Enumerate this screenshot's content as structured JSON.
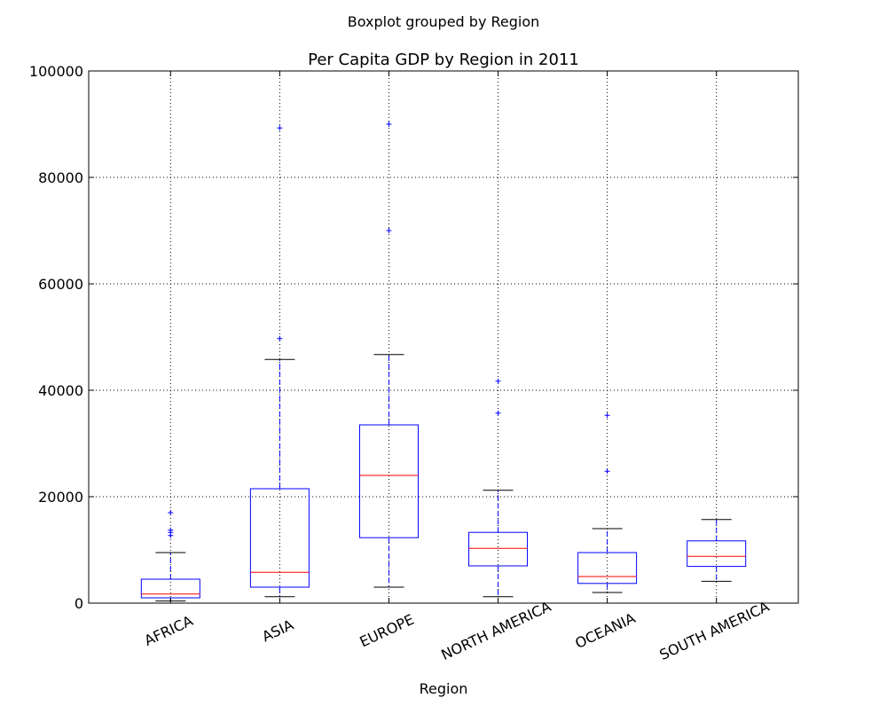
{
  "suptitle": "Boxplot grouped by Region",
  "chart_data": {
    "type": "boxplot",
    "title": "Per Capita GDP by Region in 2011",
    "xlabel": "Region",
    "ylabel": "",
    "ylim": [
      0,
      100000
    ],
    "yticks": [
      0,
      20000,
      40000,
      60000,
      80000,
      100000
    ],
    "grid": true,
    "categories": [
      "AFRICA",
      "ASIA",
      "EUROPE",
      "NORTH AMERICA",
      "OCEANIA",
      "SOUTH AMERICA"
    ],
    "boxes": [
      {
        "whisker_low": 400,
        "q1": 1000,
        "median": 1700,
        "q3": 4500,
        "whisker_high": 9500,
        "outliers": [
          12700,
          13300,
          13700,
          17000
        ]
      },
      {
        "whisker_low": 1200,
        "q1": 3000,
        "median": 5800,
        "q3": 21500,
        "whisker_high": 45800,
        "outliers": [
          49700,
          89300
        ]
      },
      {
        "whisker_low": 3000,
        "q1": 12300,
        "median": 24000,
        "q3": 33500,
        "whisker_high": 46700,
        "outliers": [
          70000,
          90000
        ]
      },
      {
        "whisker_low": 1200,
        "q1": 7000,
        "median": 10300,
        "q3": 13300,
        "whisker_high": 21200,
        "outliers": [
          35700,
          41700
        ]
      },
      {
        "whisker_low": 2000,
        "q1": 3700,
        "median": 5000,
        "q3": 9500,
        "whisker_high": 14000,
        "outliers": [
          24800,
          35300
        ]
      },
      {
        "whisker_low": 4100,
        "q1": 6900,
        "median": 8800,
        "q3": 11700,
        "whisker_high": 15700,
        "outliers": []
      }
    ],
    "colors": {
      "box": "#0000ff",
      "median": "#ff0000",
      "whisker": "#0000ff",
      "cap": "#000000",
      "flier": "#0000ff",
      "grid": "#000000"
    }
  }
}
